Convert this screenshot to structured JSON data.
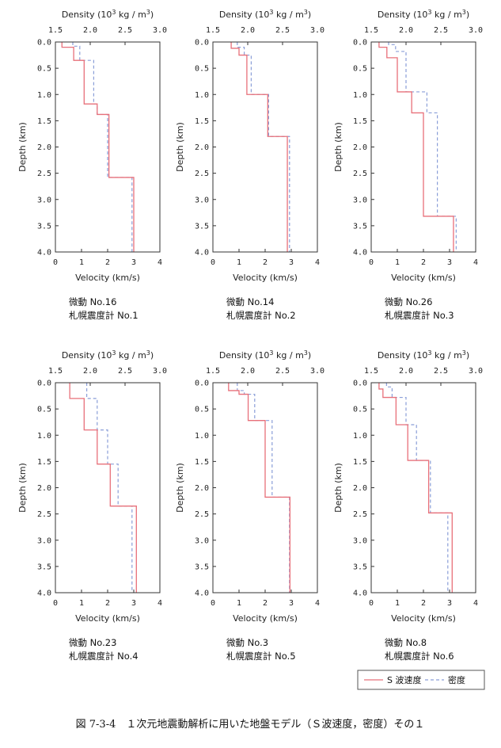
{
  "figure_title": "図 7-3-4　１次元地震動解析に用いた地盤モデル（Ｓ波速度，密度）その１",
  "legend": {
    "vs_label": "S 波速度",
    "density_label": "密度"
  },
  "colors": {
    "vs": "#e8707a",
    "density": "#8a9ed8",
    "axes": "#333333"
  },
  "axes_text": {
    "density_title_prefix": "Density (10",
    "density_title_sup1": "3",
    "density_title_mid": " kg / m",
    "density_title_sup2": "3",
    "density_title_suffix": ")",
    "depth_label": "Depth (km)",
    "velocity_label": "Velocity (km/s)",
    "density_ticks": [
      "1.5",
      "2.0",
      "2.5",
      "3.0"
    ],
    "velocity_ticks": [
      "0",
      "1",
      "2",
      "3",
      "4"
    ],
    "depth_ticks": [
      "0.0",
      "0.5",
      "1.0",
      "1.5",
      "2.0",
      "2.5",
      "3.0",
      "3.5",
      "4.0"
    ]
  },
  "chart_data": [
    {
      "type": "line",
      "caption_line1": "微動 No.16",
      "caption_line2": "札幌震度計 No.1",
      "xlim_velocity": [
        0,
        4
      ],
      "xlim_density": [
        1.5,
        3.0
      ],
      "ylim_depth": [
        4.0,
        0.0
      ],
      "vs_layers": [
        {
          "top": 0.0,
          "value": 0.25
        },
        {
          "top": 0.1,
          "value": 0.7
        },
        {
          "top": 0.35,
          "value": 1.1
        },
        {
          "top": 1.18,
          "value": 1.6
        },
        {
          "top": 1.38,
          "value": 2.05
        },
        {
          "top": 2.58,
          "value": 3.0
        }
      ],
      "density_layers": [
        {
          "top": 0.0,
          "value": 1.75
        },
        {
          "top": 0.08,
          "value": 1.85
        },
        {
          "top": 0.35,
          "value": 2.05
        },
        {
          "top": 1.18,
          "value": 2.1
        },
        {
          "top": 1.38,
          "value": 2.25
        },
        {
          "top": 2.58,
          "value": 2.6
        }
      ]
    },
    {
      "type": "line",
      "caption_line1": "微動 No.14",
      "caption_line2": "札幌震度計 No.2",
      "xlim_velocity": [
        0,
        4
      ],
      "xlim_density": [
        1.5,
        3.0
      ],
      "ylim_depth": [
        4.0,
        0.0
      ],
      "vs_layers": [
        {
          "top": 0.0,
          "value": 0.7
        },
        {
          "top": 0.12,
          "value": 1.0
        },
        {
          "top": 0.25,
          "value": 1.3
        },
        {
          "top": 1.0,
          "value": 2.1
        },
        {
          "top": 1.8,
          "value": 2.85
        }
      ],
      "density_layers": [
        {
          "top": 0.0,
          "value": 1.85
        },
        {
          "top": 0.1,
          "value": 1.95
        },
        {
          "top": 0.25,
          "value": 2.05
        },
        {
          "top": 1.0,
          "value": 2.3
        },
        {
          "top": 1.8,
          "value": 2.6
        }
      ]
    },
    {
      "type": "line",
      "caption_line1": "微動 No.26",
      "caption_line2": "札幌震度計 No.3",
      "xlim_velocity": [
        0,
        4
      ],
      "xlim_density": [
        1.5,
        3.0
      ],
      "ylim_depth": [
        4.0,
        0.0
      ],
      "vs_layers": [
        {
          "top": 0.0,
          "value": 0.3
        },
        {
          "top": 0.1,
          "value": 0.6
        },
        {
          "top": 0.3,
          "value": 1.0
        },
        {
          "top": 0.95,
          "value": 1.55
        },
        {
          "top": 1.35,
          "value": 2.0
        },
        {
          "top": 3.32,
          "value": 3.15
        }
      ],
      "density_layers": [
        {
          "top": 0.0,
          "value": 1.75
        },
        {
          "top": 0.05,
          "value": 1.85
        },
        {
          "top": 0.18,
          "value": 2.0
        },
        {
          "top": 0.95,
          "value": 2.3
        },
        {
          "top": 1.35,
          "value": 2.45
        },
        {
          "top": 3.32,
          "value": 2.72
        }
      ]
    },
    {
      "type": "line",
      "caption_line1": "微動 No.23",
      "caption_line2": "札幌震度計 No.4",
      "xlim_velocity": [
        0,
        4
      ],
      "xlim_density": [
        1.5,
        3.0
      ],
      "ylim_depth": [
        4.0,
        0.0
      ],
      "vs_layers": [
        {
          "top": 0.0,
          "value": 0.55
        },
        {
          "top": 0.3,
          "value": 1.1
        },
        {
          "top": 0.9,
          "value": 1.6
        },
        {
          "top": 1.55,
          "value": 2.1
        },
        {
          "top": 2.35,
          "value": 3.1
        }
      ],
      "density_layers": [
        {
          "top": 0.0,
          "value": 1.95
        },
        {
          "top": 0.3,
          "value": 2.1
        },
        {
          "top": 0.9,
          "value": 2.25
        },
        {
          "top": 1.55,
          "value": 2.4
        },
        {
          "top": 2.35,
          "value": 2.6
        }
      ]
    },
    {
      "type": "line",
      "caption_line1": "微動 No.3",
      "caption_line2": "札幌震度計 No.5",
      "xlim_velocity": [
        0,
        4
      ],
      "xlim_density": [
        1.5,
        3.0
      ],
      "ylim_depth": [
        4.0,
        0.0
      ],
      "vs_layers": [
        {
          "top": 0.0,
          "value": 0.6
        },
        {
          "top": 0.15,
          "value": 1.0
        },
        {
          "top": 0.22,
          "value": 1.35
        },
        {
          "top": 0.72,
          "value": 2.0
        },
        {
          "top": 2.18,
          "value": 2.95
        }
      ],
      "density_layers": [
        {
          "top": 0.0,
          "value": 1.85
        },
        {
          "top": 0.15,
          "value": 1.95
        },
        {
          "top": 0.22,
          "value": 2.1
        },
        {
          "top": 0.72,
          "value": 2.35
        },
        {
          "top": 2.18,
          "value": 2.6
        }
      ]
    },
    {
      "type": "line",
      "caption_line1": "微動 No.8",
      "caption_line2": "札幌震度計 No.6",
      "xlim_velocity": [
        0,
        4
      ],
      "xlim_density": [
        1.5,
        3.0
      ],
      "ylim_depth": [
        4.0,
        0.0
      ],
      "vs_layers": [
        {
          "top": 0.0,
          "value": 0.3
        },
        {
          "top": 0.12,
          "value": 0.45
        },
        {
          "top": 0.28,
          "value": 0.95
        },
        {
          "top": 0.8,
          "value": 1.4
        },
        {
          "top": 1.48,
          "value": 2.2
        },
        {
          "top": 2.48,
          "value": 3.1
        }
      ],
      "density_layers": [
        {
          "top": 0.0,
          "value": 1.72
        },
        {
          "top": 0.08,
          "value": 1.8
        },
        {
          "top": 0.28,
          "value": 2.0
        },
        {
          "top": 0.8,
          "value": 2.15
        },
        {
          "top": 1.48,
          "value": 2.35
        },
        {
          "top": 2.48,
          "value": 2.6
        }
      ]
    }
  ]
}
